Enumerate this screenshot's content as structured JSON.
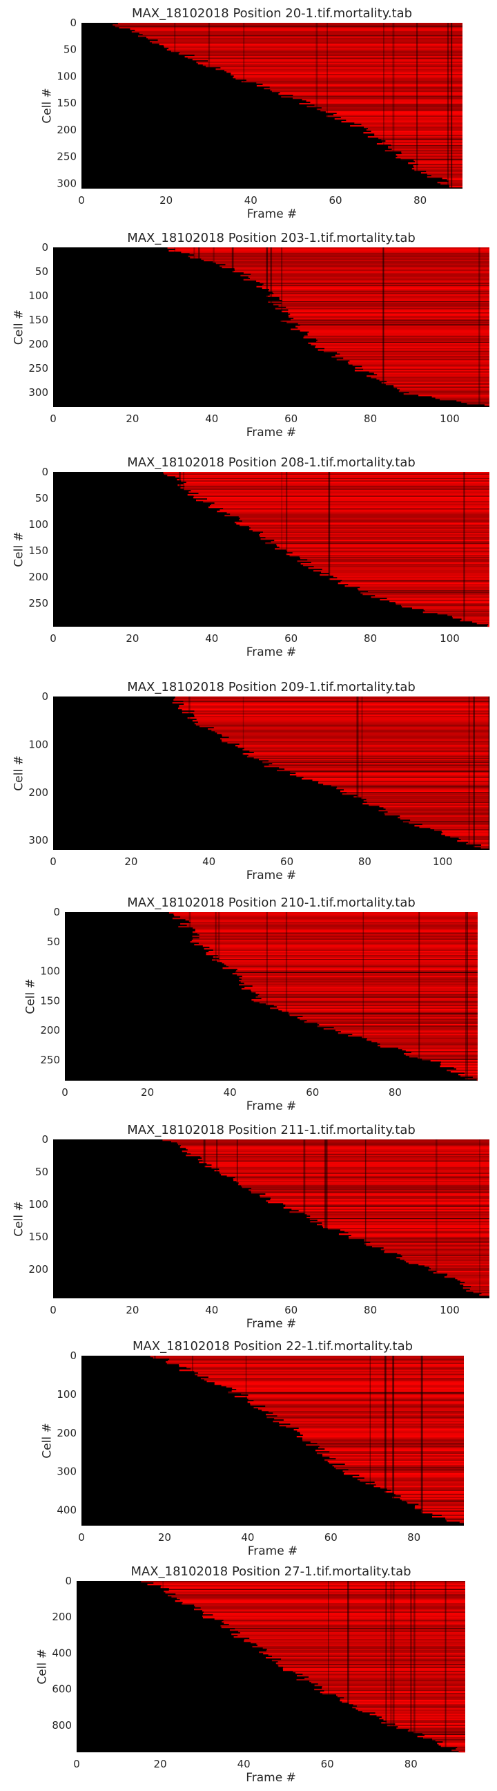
{
  "chart_data": [
    {
      "type": "heatmap",
      "title": "MAX_18102018 Position 20-1.tif.mortality.tab",
      "xlabel": "Frame #",
      "ylabel": "Cell #",
      "xlim": [
        0,
        90
      ],
      "ylim": [
        0,
        310
      ],
      "xticks": [
        "0",
        "20",
        "40",
        "60",
        "80"
      ],
      "xtick_values": [
        0,
        20,
        40,
        60,
        80
      ],
      "yticks": [
        "0",
        "50",
        "100",
        "150",
        "200",
        "250",
        "300"
      ],
      "ytick_values": [
        0,
        50,
        100,
        150,
        200,
        250,
        300
      ],
      "death_front": [
        [
          0,
          8
        ],
        [
          50,
          22
        ],
        [
          100,
          36
        ],
        [
          150,
          53
        ],
        [
          200,
          67
        ],
        [
          250,
          75
        ],
        [
          300,
          86
        ],
        [
          310,
          90
        ]
      ],
      "colormap": [
        "#000000",
        "#ff0000"
      ],
      "grid": false,
      "legend": false
    },
    {
      "type": "heatmap",
      "title": "MAX_18102018 Position 203-1.tif.mortality.tab",
      "xlabel": "Frame #",
      "ylabel": "Cell #",
      "xlim": [
        0,
        110
      ],
      "ylim": [
        0,
        330
      ],
      "xticks": [
        "0",
        "20",
        "40",
        "60",
        "80",
        "100"
      ],
      "xtick_values": [
        0,
        20,
        40,
        60,
        80,
        100
      ],
      "yticks": [
        "0",
        "50",
        "100",
        "150",
        "200",
        "250",
        "300"
      ],
      "ytick_values": [
        0,
        50,
        100,
        150,
        200,
        250,
        300
      ],
      "death_front": [
        [
          0,
          28
        ],
        [
          50,
          47
        ],
        [
          100,
          55
        ],
        [
          150,
          59
        ],
        [
          200,
          66
        ],
        [
          250,
          77
        ],
        [
          300,
          88
        ],
        [
          330,
          110
        ]
      ],
      "colormap": [
        "#000000",
        "#ff0000"
      ],
      "grid": false,
      "legend": false
    },
    {
      "type": "heatmap",
      "title": "MAX_18102018 Position 208-1.tif.mortality.tab",
      "xlabel": "Frame #",
      "ylabel": "Cell #",
      "xlim": [
        0,
        110
      ],
      "ylim": [
        0,
        295
      ],
      "xticks": [
        "0",
        "20",
        "40",
        "60",
        "80",
        "100"
      ],
      "xtick_values": [
        0,
        20,
        40,
        60,
        80,
        100
      ],
      "yticks": [
        "0",
        "50",
        "100",
        "150",
        "200",
        "250"
      ],
      "ytick_values": [
        0,
        50,
        100,
        150,
        200,
        250
      ],
      "death_front": [
        [
          0,
          28
        ],
        [
          50,
          37
        ],
        [
          100,
          48
        ],
        [
          150,
          58
        ],
        [
          200,
          70
        ],
        [
          250,
          85
        ],
        [
          295,
          110
        ]
      ],
      "colormap": [
        "#000000",
        "#ff0000"
      ],
      "grid": false,
      "legend": false
    },
    {
      "type": "heatmap",
      "title": "MAX_18102018 Position 209-1.tif.mortality.tab",
      "xlabel": "Frame #",
      "ylabel": "Cell #",
      "xlim": [
        0,
        112
      ],
      "ylim": [
        0,
        320
      ],
      "xticks": [
        "0",
        "20",
        "40",
        "60",
        "80",
        "100"
      ],
      "xtick_values": [
        0,
        20,
        40,
        60,
        80,
        100
      ],
      "yticks": [
        "0",
        "100",
        "200",
        "300"
      ],
      "ytick_values": [
        0,
        100,
        200,
        300
      ],
      "death_front": [
        [
          0,
          30
        ],
        [
          50,
          37
        ],
        [
          100,
          46
        ],
        [
          150,
          57
        ],
        [
          200,
          75
        ],
        [
          250,
          88
        ],
        [
          300,
          105
        ],
        [
          320,
          112
        ]
      ],
      "colormap": [
        "#000000",
        "#ff0000"
      ],
      "grid": false,
      "legend": false
    },
    {
      "type": "heatmap",
      "title": "MAX_18102018 Position 210-1.tif.mortality.tab",
      "xlabel": "Frame #",
      "ylabel": "Cell #",
      "xlim": [
        0,
        100
      ],
      "ylim": [
        0,
        285
      ],
      "xticks": [
        "0",
        "20",
        "40",
        "60",
        "80"
      ],
      "xtick_values": [
        0,
        20,
        40,
        60,
        80
      ],
      "yticks": [
        "0",
        "50",
        "100",
        "150",
        "200",
        "250"
      ],
      "ytick_values": [
        0,
        50,
        100,
        150,
        200,
        250
      ],
      "death_front": [
        [
          0,
          27
        ],
        [
          50,
          32
        ],
        [
          100,
          41
        ],
        [
          150,
          47
        ],
        [
          200,
          65
        ],
        [
          250,
          88
        ],
        [
          285,
          100
        ]
      ],
      "colormap": [
        "#000000",
        "#ff0000"
      ],
      "grid": false,
      "legend": false
    },
    {
      "type": "heatmap",
      "title": "MAX_18102018 Position 211-1.tif.mortality.tab",
      "xlabel": "Frame #",
      "ylabel": "Cell #",
      "xlim": [
        0,
        110
      ],
      "ylim": [
        0,
        245
      ],
      "xticks": [
        "0",
        "20",
        "40",
        "60",
        "80",
        "100"
      ],
      "xtick_values": [
        0,
        20,
        40,
        60,
        80,
        100
      ],
      "yticks": [
        "0",
        "50",
        "100",
        "150",
        "200"
      ],
      "ytick_values": [
        0,
        50,
        100,
        150,
        200
      ],
      "death_front": [
        [
          0,
          28
        ],
        [
          50,
          42
        ],
        [
          100,
          57
        ],
        [
          150,
          75
        ],
        [
          200,
          95
        ],
        [
          245,
          110
        ]
      ],
      "colormap": [
        "#000000",
        "#ff0000"
      ],
      "grid": false,
      "legend": false
    },
    {
      "type": "heatmap",
      "title": "MAX_18102018 Position 22-1.tif.mortality.tab",
      "xlabel": "Frame #",
      "ylabel": "Cell #",
      "xlim": [
        0,
        92
      ],
      "ylim": [
        0,
        440
      ],
      "xticks": [
        "0",
        "20",
        "40",
        "60",
        "80"
      ],
      "xtick_values": [
        0,
        20,
        40,
        60,
        80
      ],
      "yticks": [
        "0",
        "100",
        "200",
        "300",
        "400"
      ],
      "ytick_values": [
        0,
        100,
        200,
        300,
        400
      ],
      "death_front": [
        [
          0,
          18
        ],
        [
          100,
          38
        ],
        [
          200,
          52
        ],
        [
          300,
          64
        ],
        [
          400,
          82
        ],
        [
          440,
          92
        ]
      ],
      "colormap": [
        "#000000",
        "#ff0000"
      ],
      "grid": false,
      "legend": false
    },
    {
      "type": "heatmap",
      "title": "MAX_18102018 Position 27-1.tif.mortality.tab",
      "xlabel": "Frame #",
      "ylabel": "Cell #",
      "xlim": [
        0,
        93
      ],
      "ylim": [
        0,
        950
      ],
      "xticks": [
        "0",
        "20",
        "40",
        "60",
        "80"
      ],
      "xtick_values": [
        0,
        20,
        40,
        60,
        80
      ],
      "yticks": [
        "0",
        "200",
        "400",
        "600",
        "800"
      ],
      "ytick_values": [
        0,
        200,
        400,
        600,
        800
      ],
      "death_front": [
        [
          0,
          17
        ],
        [
          200,
          32
        ],
        [
          400,
          45
        ],
        [
          600,
          58
        ],
        [
          800,
          76
        ],
        [
          950,
          93
        ]
      ],
      "colormap": [
        "#000000",
        "#ff0000"
      ],
      "grid": false,
      "legend": false
    }
  ]
}
